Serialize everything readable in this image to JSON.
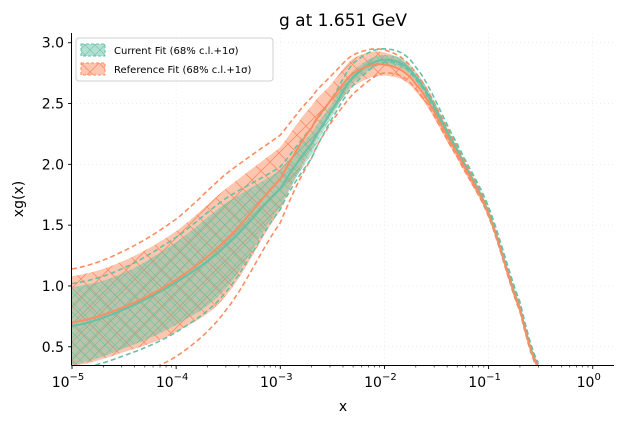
{
  "chart_data": {
    "type": "line",
    "title": "g at 1.651 GeV",
    "xlabel": "x",
    "ylabel": "xg(x)",
    "xscale": "log",
    "xlim": [
      1e-05,
      1.6
    ],
    "ylim": [
      0.35,
      3.08
    ],
    "grid": true,
    "legend_position": "top-left",
    "x_ticks": [
      {
        "value": 1e-05,
        "base": "10",
        "exp": "−5"
      },
      {
        "value": 0.0001,
        "base": "10",
        "exp": "−4"
      },
      {
        "value": 0.001,
        "base": "10",
        "exp": "−3"
      },
      {
        "value": 0.01,
        "base": "10",
        "exp": "−2"
      },
      {
        "value": 0.1,
        "base": "10",
        "exp": "−1"
      },
      {
        "value": 1,
        "base": "10",
        "exp": "0"
      }
    ],
    "y_ticks": [
      {
        "value": 0.5,
        "label": "0.5"
      },
      {
        "value": 1.0,
        "label": "1.0"
      },
      {
        "value": 1.5,
        "label": "1.5"
      },
      {
        "value": 2.0,
        "label": "2.0"
      },
      {
        "value": 2.5,
        "label": "2.5"
      },
      {
        "value": 3.0,
        "label": "3.0"
      }
    ],
    "x": [
      1e-05,
      3e-05,
      0.0001,
      0.0003,
      0.001,
      0.002,
      0.003,
      0.005,
      0.01,
      0.02,
      0.05,
      0.1,
      0.2,
      0.3
    ],
    "series": [
      {
        "name": "Current Fit (68% c.l.+1σ)",
        "color": "#66c2a5",
        "central": [
          0.67,
          0.8,
          1.03,
          1.33,
          1.8,
          2.17,
          2.42,
          2.72,
          2.86,
          2.72,
          2.12,
          1.6,
          0.82,
          0.34
        ],
        "band_lower": [
          0.35,
          0.48,
          0.68,
          0.98,
          1.65,
          2.08,
          2.37,
          2.67,
          2.82,
          2.68,
          2.09,
          1.57,
          0.79,
          0.32
        ],
        "band_upper": [
          0.99,
          1.1,
          1.36,
          1.68,
          1.95,
          2.26,
          2.48,
          2.77,
          2.9,
          2.76,
          2.15,
          1.63,
          0.85,
          0.36
        ],
        "outer_lower": [
          0.31,
          0.42,
          0.62,
          0.95,
          1.63,
          2.05,
          2.35,
          2.65,
          2.84,
          2.7,
          2.1,
          1.58,
          0.8,
          0.32
        ],
        "outer_upper": [
          1.02,
          1.14,
          1.4,
          1.72,
          1.98,
          2.3,
          2.52,
          2.83,
          2.95,
          2.8,
          2.17,
          1.65,
          0.87,
          0.37
        ]
      },
      {
        "name": "Reference Fit (68% c.l.+1σ)",
        "color": "#fc8d62",
        "central": [
          0.7,
          0.82,
          1.05,
          1.38,
          1.88,
          2.3,
          2.52,
          2.75,
          2.82,
          2.66,
          2.09,
          1.59,
          0.81,
          0.33
        ],
        "band_lower": [
          0.34,
          0.45,
          0.62,
          0.92,
          1.62,
          2.12,
          2.4,
          2.64,
          2.73,
          2.6,
          2.05,
          1.56,
          0.78,
          0.31
        ],
        "band_upper": [
          1.08,
          1.2,
          1.45,
          1.8,
          2.14,
          2.48,
          2.65,
          2.87,
          2.92,
          2.73,
          2.13,
          1.62,
          0.84,
          0.35
        ],
        "outer_lower": [
          0.14,
          0.24,
          0.42,
          0.8,
          1.52,
          2.05,
          2.33,
          2.58,
          2.75,
          2.62,
          2.06,
          1.57,
          0.79,
          0.31
        ],
        "outer_upper": [
          1.14,
          1.28,
          1.55,
          1.92,
          2.24,
          2.55,
          2.72,
          2.9,
          2.94,
          2.75,
          2.15,
          1.63,
          0.85,
          0.36
        ]
      }
    ]
  }
}
